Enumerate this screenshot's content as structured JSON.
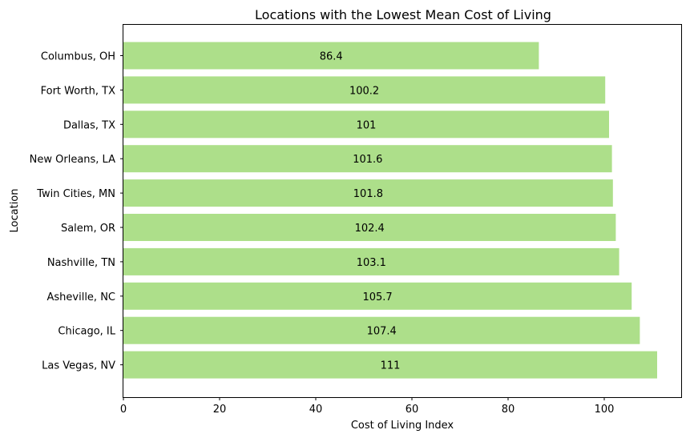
{
  "chart_data": {
    "type": "bar",
    "orientation": "horizontal",
    "title": "Locations with the Lowest Mean Cost of Living",
    "xlabel": "Cost of Living Index",
    "ylabel": "Location",
    "categories": [
      "Columbus, OH",
      "Fort Worth, TX",
      "Dallas, TX",
      "New Orleans, LA",
      "Twin Cities, MN",
      "Salem, OR",
      "Nashville, TN",
      "Asheville, NC",
      "Chicago, IL",
      "Las Vegas, NV"
    ],
    "values": [
      86.4,
      100.2,
      101,
      101.6,
      101.8,
      102.4,
      103.1,
      105.7,
      107.4,
      111
    ],
    "data_labels": [
      "86.4",
      "100.2",
      "101",
      "101.6",
      "101.8",
      "102.4",
      "103.1",
      "105.7",
      "107.4",
      "111"
    ],
    "xticks": [
      0,
      20,
      40,
      60,
      80,
      100
    ],
    "xlim": [
      0,
      116
    ],
    "bar_color": "#addf8a",
    "grid": false
  }
}
